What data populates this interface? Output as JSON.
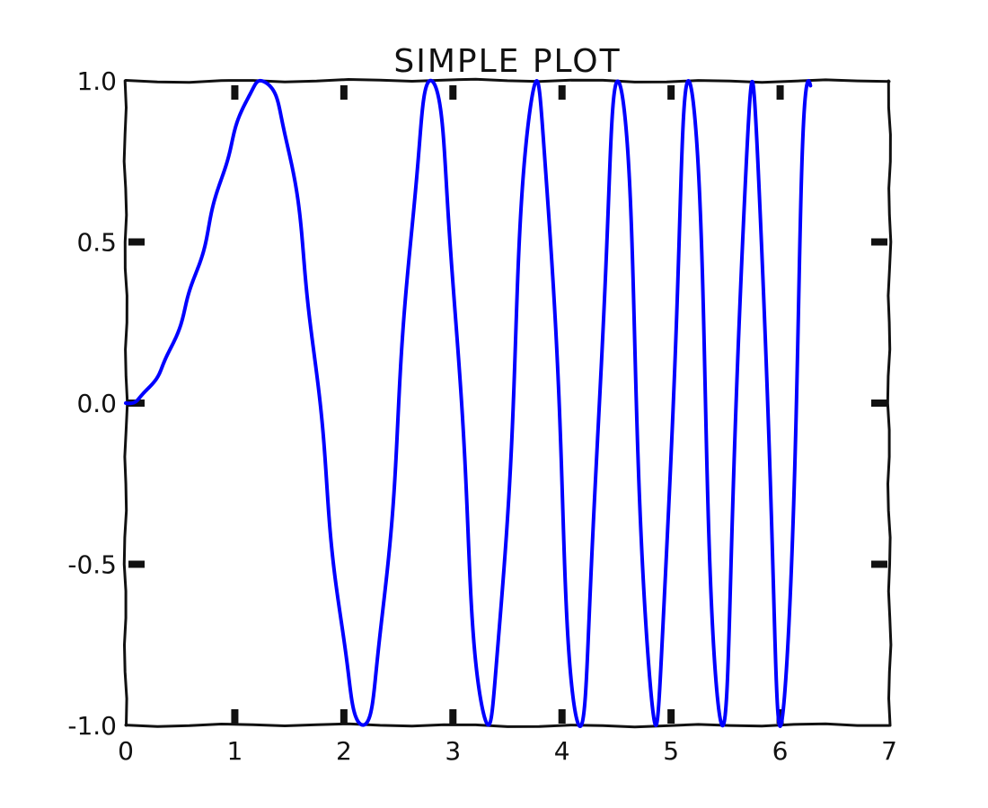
{
  "chart_data": {
    "type": "line",
    "title": "SIMPLE PLOT",
    "xlabel": "",
    "ylabel": "",
    "xlim": [
      0,
      7
    ],
    "ylim": [
      -1.0,
      1.0
    ],
    "x_ticks": [
      0,
      1,
      2,
      3,
      4,
      5,
      6,
      7
    ],
    "x_tick_labels": [
      "0",
      "1",
      "2",
      "3",
      "4",
      "5",
      "6",
      "7"
    ],
    "y_ticks": [
      -1.0,
      -0.5,
      0.0,
      0.5,
      1.0
    ],
    "y_tick_labels": [
      "-1.0",
      "-0.5",
      "0.0",
      "0.5",
      "1.0"
    ],
    "grid": false,
    "legend": "none",
    "series": [
      {
        "color": "#0000ff",
        "function": "y = sin(x^2)",
        "x_range": [
          0,
          6.28
        ],
        "x": [
          0,
          0.5,
          1.0,
          1.25,
          1.5,
          1.77,
          2.0,
          2.17,
          2.5,
          2.8,
          3.07,
          3.3,
          3.54,
          3.75,
          3.96,
          4.15,
          4.34,
          4.52,
          4.69,
          4.86,
          5.02,
          5.17,
          5.32,
          5.47,
          5.61,
          5.75,
          5.88,
          6.01,
          6.14,
          6.28
        ],
        "y": [
          0.0,
          0.25,
          0.84,
          1.0,
          0.78,
          0.0,
          -0.76,
          -1.0,
          -0.03,
          1.0,
          0.0,
          -1.0,
          0.0,
          1.0,
          0.0,
          -1.0,
          0.0,
          1.0,
          0.0,
          -1.0,
          0.0,
          1.0,
          0.0,
          -1.0,
          0.0,
          1.0,
          0.0,
          -1.0,
          0.0,
          0.98
        ]
      }
    ]
  },
  "colors": {
    "axes": "#111111",
    "line": "#0000ff",
    "background": "#ffffff"
  }
}
